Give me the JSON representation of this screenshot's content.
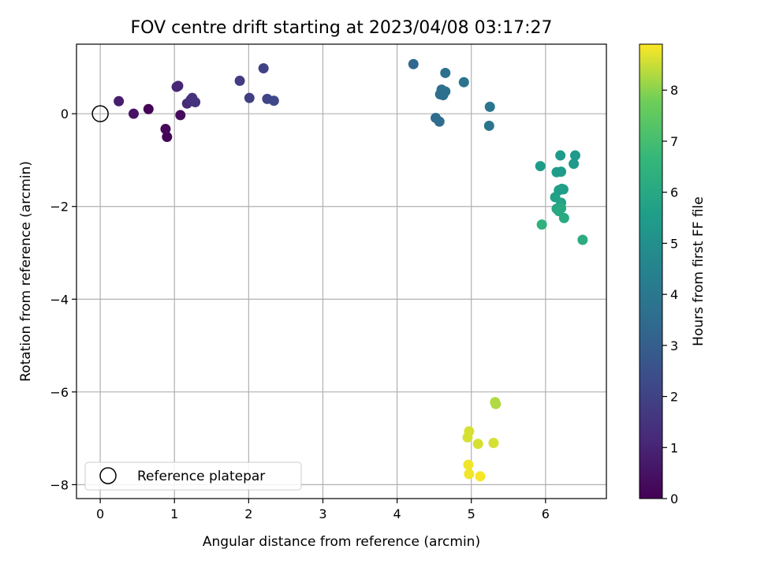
{
  "chart_data": {
    "type": "scatter",
    "title": "FOV centre drift starting at 2023/04/08 03:17:27",
    "xlabel": "Angular distance from reference (arcmin)",
    "ylabel": "Rotation from reference (arcmin)",
    "xlim": [
      -0.32,
      6.82
    ],
    "ylim": [
      -8.3,
      1.5
    ],
    "xticks": [
      0,
      1,
      2,
      3,
      4,
      5,
      6
    ],
    "yticks": [
      -8,
      -6,
      -4,
      -2,
      0
    ],
    "grid": true,
    "colorbar": {
      "label": "Hours from first FF file",
      "colormap": "viridis",
      "range": [
        0,
        8.9
      ],
      "ticks": [
        0,
        1,
        2,
        3,
        4,
        5,
        6,
        7,
        8
      ]
    },
    "legend": {
      "position": "lower-left",
      "entries": [
        {
          "label": "Reference platepar",
          "marker": "hollow-circle"
        }
      ]
    },
    "reference_point": {
      "x": 0,
      "y": 0
    },
    "series": [
      {
        "points": [
          {
            "x": 0.65,
            "y": 0.1,
            "hours": 0.05
          },
          {
            "x": 0.9,
            "y": -0.5,
            "hours": 0.1
          },
          {
            "x": 0.88,
            "y": -0.33,
            "hours": 0.2
          },
          {
            "x": 1.08,
            "y": -0.03,
            "hours": 0.3
          },
          {
            "x": 0.45,
            "y": 0.0,
            "hours": 0.5
          },
          {
            "x": 0.25,
            "y": 0.27,
            "hours": 0.8
          },
          {
            "x": 1.03,
            "y": 0.58,
            "hours": 1.0
          },
          {
            "x": 1.05,
            "y": 0.6,
            "hours": 1.05
          },
          {
            "x": 1.17,
            "y": 0.22,
            "hours": 1.2
          },
          {
            "x": 1.22,
            "y": 0.3,
            "hours": 1.3
          },
          {
            "x": 1.24,
            "y": 0.34,
            "hours": 1.4
          },
          {
            "x": 1.28,
            "y": 0.25,
            "hours": 1.5
          },
          {
            "x": 1.88,
            "y": 0.71,
            "hours": 1.8
          },
          {
            "x": 2.01,
            "y": 0.34,
            "hours": 1.9
          },
          {
            "x": 2.2,
            "y": 0.98,
            "hours": 2.0
          },
          {
            "x": 2.25,
            "y": 0.32,
            "hours": 2.1
          },
          {
            "x": 2.34,
            "y": 0.28,
            "hours": 2.2
          },
          {
            "x": 4.22,
            "y": 1.07,
            "hours": 3.3
          },
          {
            "x": 4.52,
            "y": -0.09,
            "hours": 3.5
          },
          {
            "x": 4.57,
            "y": -0.17,
            "hours": 3.55
          },
          {
            "x": 4.58,
            "y": 0.42,
            "hours": 3.6
          },
          {
            "x": 4.6,
            "y": 0.52,
            "hours": 3.6
          },
          {
            "x": 4.62,
            "y": 0.4,
            "hours": 3.65
          },
          {
            "x": 4.65,
            "y": 0.48,
            "hours": 3.7
          },
          {
            "x": 4.65,
            "y": 0.88,
            "hours": 3.7
          },
          {
            "x": 4.9,
            "y": 0.68,
            "hours": 3.8
          },
          {
            "x": 5.24,
            "y": -0.26,
            "hours": 3.9
          },
          {
            "x": 5.25,
            "y": 0.15,
            "hours": 3.95
          },
          {
            "x": 6.2,
            "y": -0.9,
            "hours": 5.4
          },
          {
            "x": 6.4,
            "y": -0.9,
            "hours": 5.4
          },
          {
            "x": 6.38,
            "y": -1.08,
            "hours": 5.4
          },
          {
            "x": 5.93,
            "y": -1.13,
            "hours": 5.5
          },
          {
            "x": 6.15,
            "y": -1.26,
            "hours": 5.5
          },
          {
            "x": 6.21,
            "y": -1.25,
            "hours": 5.5
          },
          {
            "x": 6.18,
            "y": -1.65,
            "hours": 5.6
          },
          {
            "x": 6.22,
            "y": -1.62,
            "hours": 5.6
          },
          {
            "x": 6.24,
            "y": -1.63,
            "hours": 5.6
          },
          {
            "x": 6.13,
            "y": -1.8,
            "hours": 5.7
          },
          {
            "x": 6.21,
            "y": -1.92,
            "hours": 5.8
          },
          {
            "x": 6.15,
            "y": -2.05,
            "hours": 5.9
          },
          {
            "x": 6.18,
            "y": -2.1,
            "hours": 6.0
          },
          {
            "x": 6.21,
            "y": -2.04,
            "hours": 6.0
          },
          {
            "x": 6.25,
            "y": -2.25,
            "hours": 6.1
          },
          {
            "x": 6.5,
            "y": -2.72,
            "hours": 6.2
          },
          {
            "x": 5.95,
            "y": -2.39,
            "hours": 6.4
          },
          {
            "x": 5.32,
            "y": -6.22,
            "hours": 8.3
          },
          {
            "x": 5.33,
            "y": -6.26,
            "hours": 8.3
          },
          {
            "x": 4.97,
            "y": -6.85,
            "hours": 8.6
          },
          {
            "x": 4.95,
            "y": -6.98,
            "hours": 8.6
          },
          {
            "x": 5.09,
            "y": -7.12,
            "hours": 8.6
          },
          {
            "x": 5.3,
            "y": -7.1,
            "hours": 8.6
          },
          {
            "x": 4.96,
            "y": -7.57,
            "hours": 8.8
          },
          {
            "x": 4.97,
            "y": -7.77,
            "hours": 8.8
          },
          {
            "x": 5.12,
            "y": -7.82,
            "hours": 8.85
          }
        ]
      }
    ]
  }
}
